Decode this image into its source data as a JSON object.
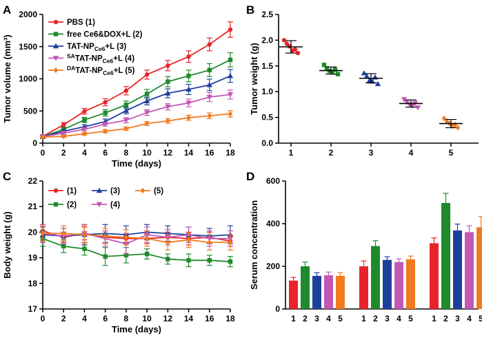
{
  "colors": [
    "#e8232a",
    "#1f8a2c",
    "#1d3f9c",
    "#c257b6",
    "#f07a1e"
  ],
  "figure": {
    "panels": [
      {
        "id": "A",
        "label": "A"
      },
      {
        "id": "B",
        "label": "B"
      },
      {
        "id": "C",
        "label": "C"
      },
      {
        "id": "D",
        "label": "D"
      }
    ]
  },
  "chart_data": [
    {
      "panel": "A",
      "type": "line",
      "xlabel": "Time (days)",
      "ylabel": "Tumor volume (mm³)",
      "x": [
        0,
        2,
        4,
        6,
        8,
        10,
        12,
        14,
        16,
        18
      ],
      "xlim": [
        0,
        18
      ],
      "ylim": [
        0,
        2000
      ],
      "xticks": [
        "0",
        "2",
        "4",
        "6",
        "8",
        "10",
        "12",
        "14",
        "16",
        "18"
      ],
      "yticks": [
        "0",
        "500",
        "1000",
        "1500",
        "2000"
      ],
      "series": [
        {
          "name": "PBS (1)",
          "marker": "circle",
          "values": [
            105,
            285,
            495,
            635,
            815,
            1065,
            1205,
            1345,
            1535,
            1765
          ],
          "err": [
            25,
            35,
            45,
            55,
            65,
            70,
            80,
            90,
            100,
            120
          ]
        },
        {
          "name": "free Ce6&DOX+L (2)",
          "marker": "square",
          "values": [
            100,
            215,
            360,
            470,
            595,
            765,
            955,
            1045,
            1135,
            1295
          ],
          "err": [
            20,
            30,
            40,
            50,
            60,
            70,
            80,
            90,
            100,
            110
          ]
        },
        {
          "name": "TAT-NP",
          "name_sub": "Ce6",
          "name_tail": "+L (3)",
          "marker": "triangle-up",
          "values": [
            100,
            185,
            255,
            335,
            505,
            655,
            775,
            835,
            905,
            1045
          ],
          "err": [
            20,
            25,
            30,
            40,
            50,
            60,
            70,
            80,
            90,
            100
          ]
        },
        {
          "name": "TAT-NP",
          "name_sup": "SA",
          "name_sub": "Ce6",
          "name_tail": "+L (4)",
          "marker": "triangle-down",
          "values": [
            100,
            155,
            215,
            295,
            355,
            475,
            565,
            625,
            715,
            755
          ],
          "err": [
            15,
            20,
            25,
            30,
            40,
            45,
            50,
            60,
            70,
            70
          ]
        },
        {
          "name": "TAT-NP",
          "name_sup": "DA",
          "name_sub": "Ce6",
          "name_tail": "+L (5)",
          "marker": "diamond",
          "values": [
            95,
            105,
            145,
            185,
            225,
            305,
            345,
            395,
            425,
            455
          ],
          "err": [
            10,
            15,
            20,
            25,
            25,
            30,
            35,
            40,
            45,
            50
          ]
        }
      ]
    },
    {
      "panel": "B",
      "type": "scatter",
      "xlabel": "",
      "ylabel": "Tumor weight (g)",
      "categories": [
        "1",
        "2",
        "3",
        "4",
        "5"
      ],
      "ylim": [
        0,
        2.5
      ],
      "yticks": [
        "0.0",
        "0.5",
        "1.0",
        "1.5",
        "2.0",
        "2.5"
      ],
      "means": [
        1.87,
        1.41,
        1.26,
        0.77,
        0.38
      ],
      "sd": [
        0.12,
        0.07,
        0.09,
        0.07,
        0.08
      ],
      "points": [
        [
          2.0,
          1.93,
          1.88,
          1.8,
          1.82,
          1.75
        ],
        [
          1.52,
          1.45,
          1.4,
          1.38,
          1.43,
          1.34
        ],
        [
          1.36,
          1.3,
          1.22,
          1.2,
          1.28,
          1.15
        ],
        [
          0.85,
          0.8,
          0.75,
          0.72,
          0.78,
          0.69
        ],
        [
          0.48,
          0.42,
          0.38,
          0.33,
          0.36,
          0.3
        ]
      ]
    },
    {
      "panel": "C",
      "type": "line",
      "xlabel": "Time (days)",
      "ylabel": "Body weight (g)",
      "x": [
        0,
        2,
        4,
        6,
        8,
        10,
        12,
        14,
        16,
        18
      ],
      "xlim": [
        0,
        18
      ],
      "ylim": [
        17,
        22
      ],
      "xticks": [
        "0",
        "2",
        "4",
        "6",
        "8",
        "10",
        "12",
        "14",
        "16",
        "18"
      ],
      "yticks": [
        "17",
        "18",
        "19",
        "20",
        "21",
        "22"
      ],
      "series": [
        {
          "name": "(1)",
          "marker": "circle",
          "values": [
            20.05,
            19.8,
            19.95,
            19.8,
            19.75,
            19.75,
            19.8,
            19.75,
            19.8,
            19.65
          ],
          "err": [
            0.25,
            0.2,
            0.25,
            0.25,
            0.2,
            0.2,
            0.2,
            0.25,
            0.2,
            0.2
          ]
        },
        {
          "name": "(2)",
          "marker": "square",
          "values": [
            19.75,
            19.45,
            19.35,
            19.05,
            19.1,
            19.15,
            18.95,
            18.9,
            18.9,
            18.85
          ],
          "err": [
            0.3,
            0.25,
            0.25,
            0.35,
            0.3,
            0.2,
            0.2,
            0.25,
            0.2,
            0.2
          ]
        },
        {
          "name": "(3)",
          "marker": "triangle-up",
          "values": [
            19.9,
            19.85,
            19.9,
            19.95,
            19.9,
            20.0,
            19.95,
            19.9,
            19.85,
            19.9
          ],
          "err": [
            0.3,
            0.3,
            0.4,
            0.35,
            0.35,
            0.3,
            0.3,
            0.3,
            0.3,
            0.35
          ]
        },
        {
          "name": "(4)",
          "marker": "triangle-down",
          "values": [
            19.95,
            19.85,
            19.95,
            19.75,
            19.55,
            19.9,
            19.8,
            19.9,
            19.75,
            19.75
          ],
          "err": [
            0.35,
            0.3,
            0.35,
            0.3,
            0.4,
            0.3,
            0.3,
            0.3,
            0.3,
            0.3
          ]
        },
        {
          "name": "(5)",
          "marker": "diamond",
          "values": [
            19.95,
            19.95,
            19.9,
            19.85,
            19.8,
            19.75,
            19.6,
            19.7,
            19.6,
            19.6
          ],
          "err": [
            0.3,
            0.3,
            0.35,
            0.3,
            0.3,
            0.3,
            0.3,
            0.3,
            0.3,
            0.3
          ]
        }
      ]
    },
    {
      "panel": "D",
      "type": "bar",
      "xlabel": "",
      "ylabel": "Serum concentration",
      "categories": [
        "1",
        "2",
        "3",
        "4",
        "5"
      ],
      "groups": 3,
      "ylim": [
        0,
        600
      ],
      "yticks": [
        "0",
        "200",
        "400",
        "600"
      ],
      "values": [
        [
          133,
          200,
          155,
          158,
          155
        ],
        [
          200,
          295,
          230,
          220,
          233
        ],
        [
          308,
          497,
          368,
          360,
          383
        ]
      ],
      "err": [
        [
          15,
          20,
          15,
          15,
          15
        ],
        [
          25,
          25,
          15,
          15,
          15
        ],
        [
          25,
          45,
          30,
          30,
          50
        ]
      ]
    }
  ]
}
